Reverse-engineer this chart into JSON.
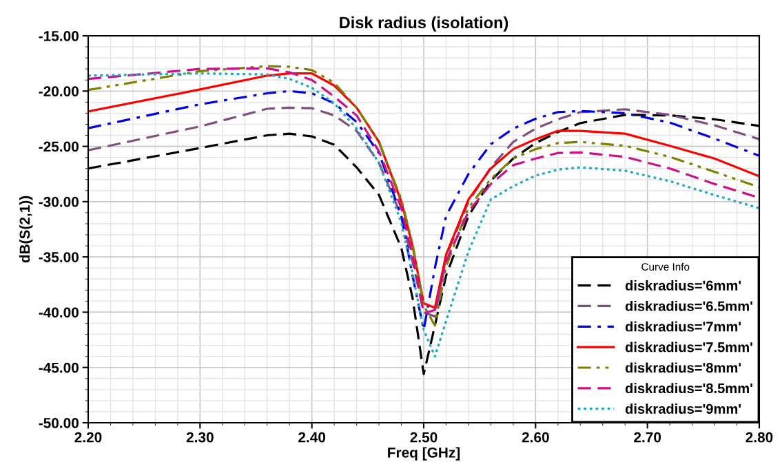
{
  "chart_data": {
    "type": "line",
    "title": "Disk radius (isolation)",
    "xlabel": "Freq [GHz]",
    "ylabel": "dB(S(2,1))",
    "legend_title": "Curve Info",
    "legend": "bottom right",
    "grid": true,
    "marker": "none",
    "x": [
      2.2,
      2.3,
      2.36,
      2.38,
      2.4,
      2.42,
      2.44,
      2.46,
      2.48,
      2.49,
      2.5,
      2.51,
      2.52,
      2.54,
      2.56,
      2.58,
      2.6,
      2.62,
      2.64,
      2.68,
      2.72,
      2.76,
      2.8
    ],
    "xlim": [
      2.2,
      2.8
    ],
    "xticks": [
      {
        "value": 2.2,
        "label": "2.20"
      },
      {
        "value": 2.3,
        "label": "2.30"
      },
      {
        "value": 2.4,
        "label": "2.40"
      },
      {
        "value": 2.5,
        "label": "2.50"
      },
      {
        "value": 2.6,
        "label": "2.60"
      },
      {
        "value": 2.7,
        "label": "2.70"
      },
      {
        "value": 2.8,
        "label": "2.80"
      }
    ],
    "ylim": [
      -50,
      -15
    ],
    "yticks": [
      {
        "value": -50,
        "label": "-50.00"
      },
      {
        "value": -45,
        "label": "-45.00"
      },
      {
        "value": -40,
        "label": "-40.00"
      },
      {
        "value": -35,
        "label": "-35.00"
      },
      {
        "value": -30,
        "label": "-30.00"
      },
      {
        "value": -25,
        "label": "-25.00"
      },
      {
        "value": -20,
        "label": "-20.00"
      },
      {
        "value": -15,
        "label": "-15.00"
      }
    ],
    "series": [
      {
        "name": "diskradius='6mm'",
        "color": "#000000",
        "line_style": "dashed",
        "values": [
          -27.0,
          -25.15,
          -24.0,
          -23.85,
          -24.1,
          -24.85,
          -26.9,
          -29.4,
          -34.2,
          -38.7,
          -45.6,
          -41.2,
          -36.7,
          -31.3,
          -28.1,
          -26.1,
          -24.7,
          -23.7,
          -22.9,
          -22.15,
          -22.2,
          -22.55,
          -23.15
        ]
      },
      {
        "name": "diskradius='6.5mm'",
        "color": "#7f4f7f",
        "line_style": "dashed",
        "values": [
          -25.35,
          -23.2,
          -21.6,
          -21.5,
          -21.55,
          -22.2,
          -23.6,
          -26.5,
          -31.3,
          -35.4,
          -40.0,
          -40.4,
          -35.0,
          -30.0,
          -26.9,
          -24.6,
          -23.4,
          -22.55,
          -21.9,
          -21.65,
          -22.15,
          -23.1,
          -24.35
        ]
      },
      {
        "name": "diskradius='7mm'",
        "color": "#0000e0",
        "line_style": "dashdot",
        "values": [
          -23.35,
          -21.2,
          -20.2,
          -20.0,
          -20.2,
          -21.1,
          -22.8,
          -25.6,
          -31.3,
          -36.7,
          -41.6,
          -36.0,
          -31.3,
          -27.5,
          -24.8,
          -23.4,
          -22.5,
          -21.9,
          -21.8,
          -22.0,
          -22.85,
          -24.3,
          -25.85
        ]
      },
      {
        "name": "diskradius='7.5mm'",
        "color": "#ff0000",
        "line_style": "solid",
        "values": [
          -21.85,
          -19.85,
          -18.6,
          -18.4,
          -18.4,
          -19.5,
          -21.5,
          -24.6,
          -30.0,
          -34.0,
          -39.2,
          -39.6,
          -34.8,
          -29.8,
          -27.0,
          -25.25,
          -24.35,
          -23.6,
          -23.6,
          -23.85,
          -24.95,
          -26.1,
          -27.7
        ]
      },
      {
        "name": "diskradius='8mm'",
        "color": "#808000",
        "line_style": "dashdotdot",
        "values": [
          -19.9,
          -18.2,
          -17.75,
          -17.8,
          -18.1,
          -19.25,
          -21.5,
          -24.6,
          -29.8,
          -33.8,
          -39.4,
          -41.2,
          -35.85,
          -30.55,
          -27.95,
          -26.1,
          -25.25,
          -24.7,
          -24.6,
          -24.95,
          -25.95,
          -27.3,
          -28.7
        ]
      },
      {
        "name": "diskradius='8.5mm'",
        "color": "#cc1188",
        "line_style": "dashed",
        "values": [
          -18.9,
          -18.0,
          -17.95,
          -18.3,
          -19.0,
          -20.5,
          -22.2,
          -25.45,
          -30.6,
          -34.9,
          -40.1,
          -39.8,
          -35.4,
          -30.9,
          -28.4,
          -26.7,
          -26.1,
          -25.6,
          -25.55,
          -25.95,
          -27.0,
          -28.4,
          -29.65
        ]
      },
      {
        "name": "diskradius='9mm'",
        "color": "#1fa8c0",
        "line_style": "dotted",
        "values": [
          -18.6,
          -18.4,
          -18.5,
          -18.9,
          -19.7,
          -21.1,
          -23.4,
          -26.5,
          -31.9,
          -36.5,
          -41.6,
          -44.0,
          -40.8,
          -34.5,
          -29.8,
          -28.6,
          -27.65,
          -27.1,
          -26.9,
          -27.2,
          -28.15,
          -29.4,
          -30.6
        ]
      }
    ]
  }
}
